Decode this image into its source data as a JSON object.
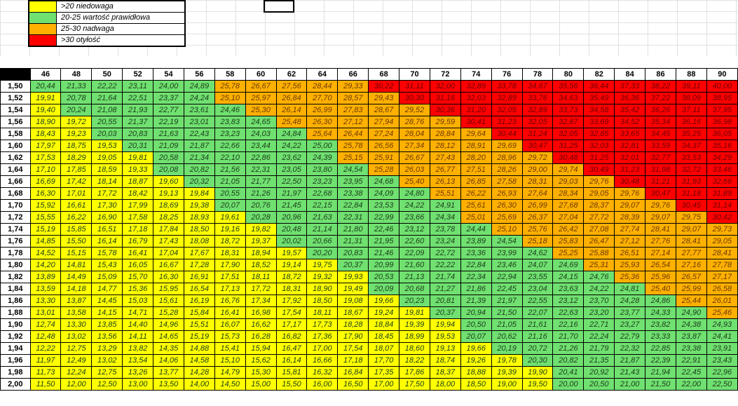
{
  "legend": [
    {
      "label": ">20 niedowaga",
      "color": "#ffff00"
    },
    {
      "label": "20-25 wartość prawidłowa",
      "color": "#70e070"
    },
    {
      "label": "25-30 nadwaga",
      "color": "#ffb000"
    },
    {
      "label": ">30 otyłość",
      "color": "#ff0000"
    }
  ],
  "thresholds": {
    "normal": 20,
    "over": 25,
    "obese": 30
  },
  "weights": [
    46,
    48,
    50,
    52,
    54,
    56,
    58,
    60,
    62,
    64,
    66,
    68,
    70,
    72,
    74,
    76,
    78,
    80,
    82,
    84,
    86,
    88,
    90
  ],
  "heights": [
    "1,50",
    "1,52",
    "1,54",
    "1,56",
    "1,58",
    "1,60",
    "1,62",
    "1,64",
    "1,66",
    "1,68",
    "1,70",
    "1,72",
    "1,74",
    "1,76",
    "1,78",
    "1,80",
    "1,82",
    "1,84",
    "1,86",
    "1,88",
    "1,90",
    "1,92",
    "1,94",
    "1,96",
    "1,98",
    "2,00"
  ],
  "height_values": [
    1.5,
    1.52,
    1.54,
    1.56,
    1.58,
    1.6,
    1.62,
    1.64,
    1.66,
    1.68,
    1.7,
    1.72,
    1.74,
    1.76,
    1.78,
    1.8,
    1.82,
    1.84,
    1.86,
    1.88,
    1.9,
    1.92,
    1.94,
    1.96,
    1.98,
    2.0
  ],
  "colors": {
    "under": "#ffff00",
    "normal": "#70e070",
    "over": "#ffb000",
    "obese": "#ff0000",
    "grid": "#e0e0e0",
    "border": "#000000",
    "background": "#ffffff"
  },
  "font": {
    "family": "Arial",
    "size_pt": 11,
    "style": "italic"
  }
}
